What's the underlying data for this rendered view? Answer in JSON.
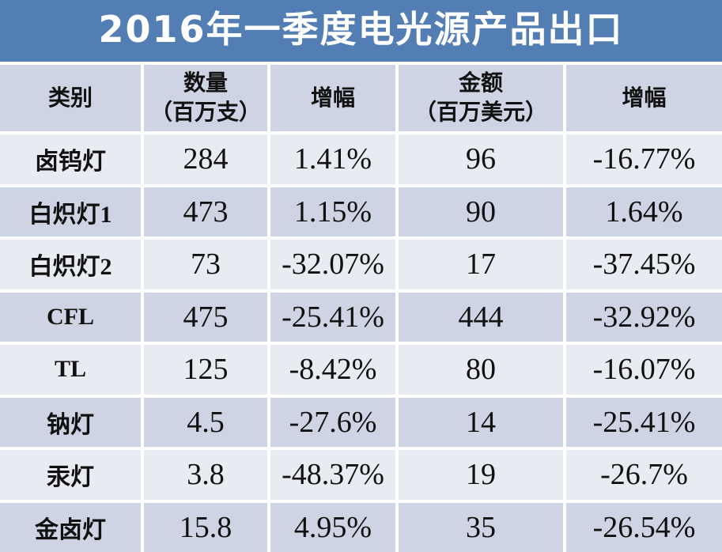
{
  "title": "2016年一季度电光源产品出口",
  "colors": {
    "banner_blue": "#527EB4",
    "band_dark": "#CED4E3",
    "band_light": "#E9EBF2",
    "gap_white": "#FFFFFF",
    "title_text": "#FFFFFF",
    "cell_text": "#111111"
  },
  "table": {
    "columns": [
      {
        "title": "类别",
        "sub": ""
      },
      {
        "title": "数量",
        "sub": "（百万支）"
      },
      {
        "title": "增幅",
        "sub": ""
      },
      {
        "title": "金额",
        "sub": "（百万美元）"
      },
      {
        "title": "增幅",
        "sub": ""
      }
    ],
    "rows": [
      {
        "category": "卤钨灯",
        "qty": "284",
        "qty_growth": "1.41%",
        "amount": "96",
        "amount_growth": "-16.77%"
      },
      {
        "category": "白炽灯1",
        "qty": "473",
        "qty_growth": "1.15%",
        "amount": "90",
        "amount_growth": "1.64%"
      },
      {
        "category": "白炽灯2",
        "qty": "73",
        "qty_growth": "-32.07%",
        "amount": "17",
        "amount_growth": "-37.45%"
      },
      {
        "category": "CFL",
        "qty": "475",
        "qty_growth": "-25.41%",
        "amount": "444",
        "amount_growth": "-32.92%"
      },
      {
        "category": "TL",
        "qty": "125",
        "qty_growth": "-8.42%",
        "amount": "80",
        "amount_growth": "-16.07%"
      },
      {
        "category": "钠灯",
        "qty": "4.5",
        "qty_growth": "-27.6%",
        "amount": "14",
        "amount_growth": "-25.41%"
      },
      {
        "category": "汞灯",
        "qty": "3.8",
        "qty_growth": "-48.37%",
        "amount": "19",
        "amount_growth": "-26.7%"
      },
      {
        "category": "金卤灯",
        "qty": "15.8",
        "qty_growth": "4.95%",
        "amount": "35",
        "amount_growth": "-26.54%"
      }
    ]
  },
  "chart_data": {
    "type": "table",
    "title": "2016年一季度电光源产品出口",
    "columns": [
      "类别",
      "数量（百万支）",
      "增幅",
      "金额（百万美元）",
      "增幅"
    ],
    "rows": [
      [
        "卤钨灯",
        284,
        "1.41%",
        96,
        "-16.77%"
      ],
      [
        "白炽灯1",
        473,
        "1.15%",
        90,
        "1.64%"
      ],
      [
        "白炽灯2",
        73,
        "-32.07%",
        17,
        "-37.45%"
      ],
      [
        "CFL",
        475,
        "-25.41%",
        444,
        "-32.92%"
      ],
      [
        "TL",
        125,
        "-8.42%",
        80,
        "-16.07%"
      ],
      [
        "钠灯",
        4.5,
        "-27.6%",
        14,
        "-25.41%"
      ],
      [
        "汞灯",
        3.8,
        "-48.37%",
        19,
        "-26.7%"
      ],
      [
        "金卤灯",
        15.8,
        "4.95%",
        35,
        "-26.54%"
      ]
    ],
    "layout": {
      "header_band": "#CED4E3",
      "row_bands": [
        "#E9EBF2",
        "#CED4E3"
      ],
      "grid": "white 4px cell spacing"
    }
  }
}
